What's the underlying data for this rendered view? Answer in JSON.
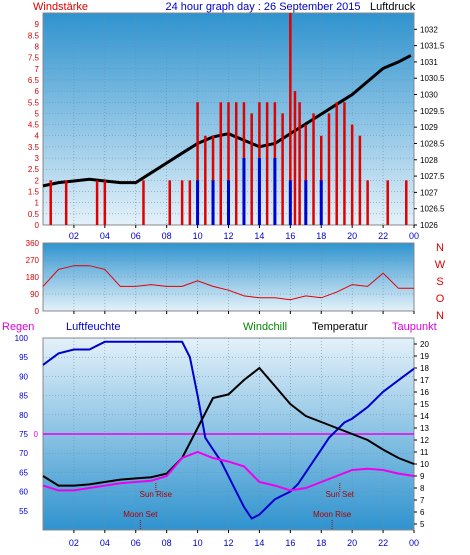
{
  "header": {
    "title": "24 hour graph day : 26 September 2015",
    "left_label": "Windstärke",
    "right_label": "Luftdruck"
  },
  "colors": {
    "red": "#e00000",
    "blue": "#0000cc",
    "black": "#000000",
    "magenta": "#ee00ee",
    "green": "#008800",
    "bg_top": "#dcecf6",
    "bg_bottom": "#2f93cf"
  },
  "x_ticks": [
    "02",
    "04",
    "06",
    "08",
    "10",
    "12",
    "14",
    "16",
    "18",
    "20",
    "22",
    "00"
  ],
  "chart_data": [
    {
      "type": "bar",
      "name": "wind-and-pressure",
      "title": "24 hour graph day : 26 September 2015",
      "ylabel_left": "Windstärke",
      "ylabel_right": "Luftdruck",
      "x_range": [
        0,
        24
      ],
      "ylim_left": [
        0,
        9.5
      ],
      "ylim_right": [
        1026,
        1032.5
      ],
      "y_ticks_left": [
        "0",
        "0.5",
        "1",
        "1.5",
        "2",
        "2.5",
        "3",
        "3.5",
        "4",
        "4.5",
        "5",
        "5.5",
        "6",
        "6.5",
        "7",
        "7.5",
        "8",
        "8.5",
        "9"
      ],
      "y_ticks_right": [
        "1026",
        "1026.5",
        "1027",
        "1027.5",
        "1028",
        "1028.5",
        "1029",
        "1029.5",
        "1030",
        "1030.5",
        "1031",
        "1031.5",
        "1032"
      ],
      "series": [
        {
          "name": "Luftdruck",
          "color": "black",
          "x": [
            0,
            1,
            2,
            3,
            4,
            5,
            6,
            7,
            8,
            9,
            10,
            11,
            12,
            13,
            14,
            15,
            16,
            17,
            18,
            19,
            20,
            21,
            22,
            23,
            23.8
          ],
          "values": [
            1027.2,
            1027.3,
            1027.35,
            1027.4,
            1027.35,
            1027.3,
            1027.3,
            1027.6,
            1027.9,
            1028.2,
            1028.5,
            1028.7,
            1028.8,
            1028.6,
            1028.4,
            1028.5,
            1028.8,
            1029.1,
            1029.4,
            1029.7,
            1030.0,
            1030.4,
            1030.8,
            1031.0,
            1031.2
          ]
        },
        {
          "name": "gust",
          "color": "red",
          "x": [
            0.5,
            1.5,
            3.5,
            4,
            6.5,
            8.2,
            9,
            9.5,
            10,
            10.5,
            11,
            11.5,
            12,
            12.5,
            13,
            13.5,
            14,
            14.5,
            15,
            15.5,
            16,
            16.3,
            16.6,
            17,
            17.5,
            18,
            18.5,
            19,
            19.5,
            20,
            20.5,
            21,
            22.3,
            23.5
          ],
          "values": [
            2,
            2,
            2,
            2,
            2,
            2,
            2,
            2,
            5.5,
            4,
            4,
            5.5,
            5.5,
            5.5,
            5.5,
            5,
            5.5,
            5.5,
            5.5,
            5,
            9.5,
            6,
            5.5,
            4.5,
            5,
            4,
            5,
            5.5,
            5.5,
            4.5,
            4,
            2,
            2,
            2
          ]
        },
        {
          "name": "average",
          "color": "blue",
          "x": [
            10,
            11,
            12,
            13,
            14,
            15,
            16,
            17,
            18
          ],
          "values": [
            2,
            2,
            2,
            3,
            3,
            3,
            2,
            2,
            2
          ]
        }
      ]
    },
    {
      "type": "line",
      "name": "wind-direction",
      "x_range": [
        0,
        24
      ],
      "ylim": [
        0,
        360
      ],
      "y_ticks": [
        "0",
        "90",
        "180",
        "270",
        "360"
      ],
      "direction_labels": [
        "N",
        "W",
        "S",
        "O",
        "N"
      ],
      "series": [
        {
          "name": "direction",
          "color": "red",
          "x": [
            0,
            1,
            2,
            3,
            4,
            5,
            6,
            7,
            8,
            9,
            10,
            11,
            12,
            13,
            14,
            15,
            16,
            17,
            18,
            19,
            20,
            21,
            22,
            23,
            24
          ],
          "values": [
            130,
            220,
            240,
            240,
            220,
            130,
            130,
            140,
            130,
            130,
            160,
            130,
            110,
            80,
            70,
            70,
            60,
            80,
            70,
            100,
            140,
            130,
            200,
            120,
            120
          ]
        }
      ]
    },
    {
      "type": "line",
      "name": "humidity-temperature",
      "x_range": [
        0,
        24
      ],
      "left_axis_label": "Regen",
      "humidity_label": "Luftfeuchte",
      "windchill_label": "Windchill",
      "temperature_label": "Temperatur",
      "dewpoint_label": "Taupunkt",
      "ylim_left": [
        50,
        100
      ],
      "ylim_right": [
        4.5,
        20.5
      ],
      "y_ticks_left": [
        "55",
        "60",
        "65",
        "70",
        "75",
        "80",
        "85",
        "90",
        "95",
        "100"
      ],
      "y_ticks_right": [
        "5",
        "6",
        "7",
        "8",
        "9",
        "10",
        "11",
        "12",
        "13",
        "14",
        "15",
        "16",
        "17",
        "18",
        "19",
        "20"
      ],
      "rain_value": "0",
      "annotations": {
        "sun_set": "Sun Set",
        "sun_rise": "Sun Rise",
        "moon_set": "Moon Set",
        "moon_rise": "Moon Rise"
      },
      "series": [
        {
          "name": "Luftfeuchte",
          "color": "blue",
          "x": [
            0,
            1,
            2,
            3,
            4,
            5,
            6,
            7,
            8,
            9,
            9.5,
            10,
            10.5,
            11,
            11.5,
            12,
            12.5,
            13,
            13.5,
            14,
            14.5,
            15,
            15.5,
            16,
            16.5,
            17,
            17.5,
            18,
            18.5,
            19,
            19.5,
            20,
            21,
            22,
            23,
            24
          ],
          "values": [
            93,
            96,
            97,
            97,
            99,
            99,
            99,
            99,
            99,
            99,
            95,
            85,
            74,
            71,
            68,
            64,
            60,
            56,
            53,
            54,
            56,
            58,
            59,
            60,
            62,
            65,
            68,
            71,
            74,
            76,
            78,
            79,
            82,
            86,
            89,
            92
          ]
        },
        {
          "name": "Temperatur",
          "color": "black",
          "x": [
            0,
            1,
            2,
            3,
            4,
            5,
            6,
            7,
            8,
            9,
            10,
            11,
            12,
            13,
            14,
            15,
            16,
            17,
            18,
            19,
            20,
            21,
            22,
            23,
            24
          ],
          "values": [
            9,
            8.2,
            8.2,
            8.3,
            8.5,
            8.7,
            8.8,
            8.9,
            9.2,
            10.5,
            13,
            15.5,
            15.8,
            17,
            18,
            16.5,
            15,
            14,
            13.5,
            13,
            12.5,
            12,
            11.2,
            10.5,
            10
          ]
        },
        {
          "name": "Taupunkt",
          "color": "magenta",
          "x": [
            0,
            1,
            2,
            3,
            4,
            5,
            6,
            7,
            8,
            9,
            10,
            11,
            12,
            13,
            14,
            15,
            16,
            17,
            18,
            19,
            20,
            21,
            22,
            23,
            24
          ],
          "values": [
            8.2,
            7.8,
            7.8,
            8,
            8.2,
            8.4,
            8.5,
            8.6,
            9,
            10.5,
            11,
            10.5,
            10.2,
            9.8,
            8.5,
            8.2,
            7.8,
            8,
            8.5,
            9,
            9.5,
            9.6,
            9.5,
            9.2,
            9
          ]
        }
      ]
    }
  ]
}
